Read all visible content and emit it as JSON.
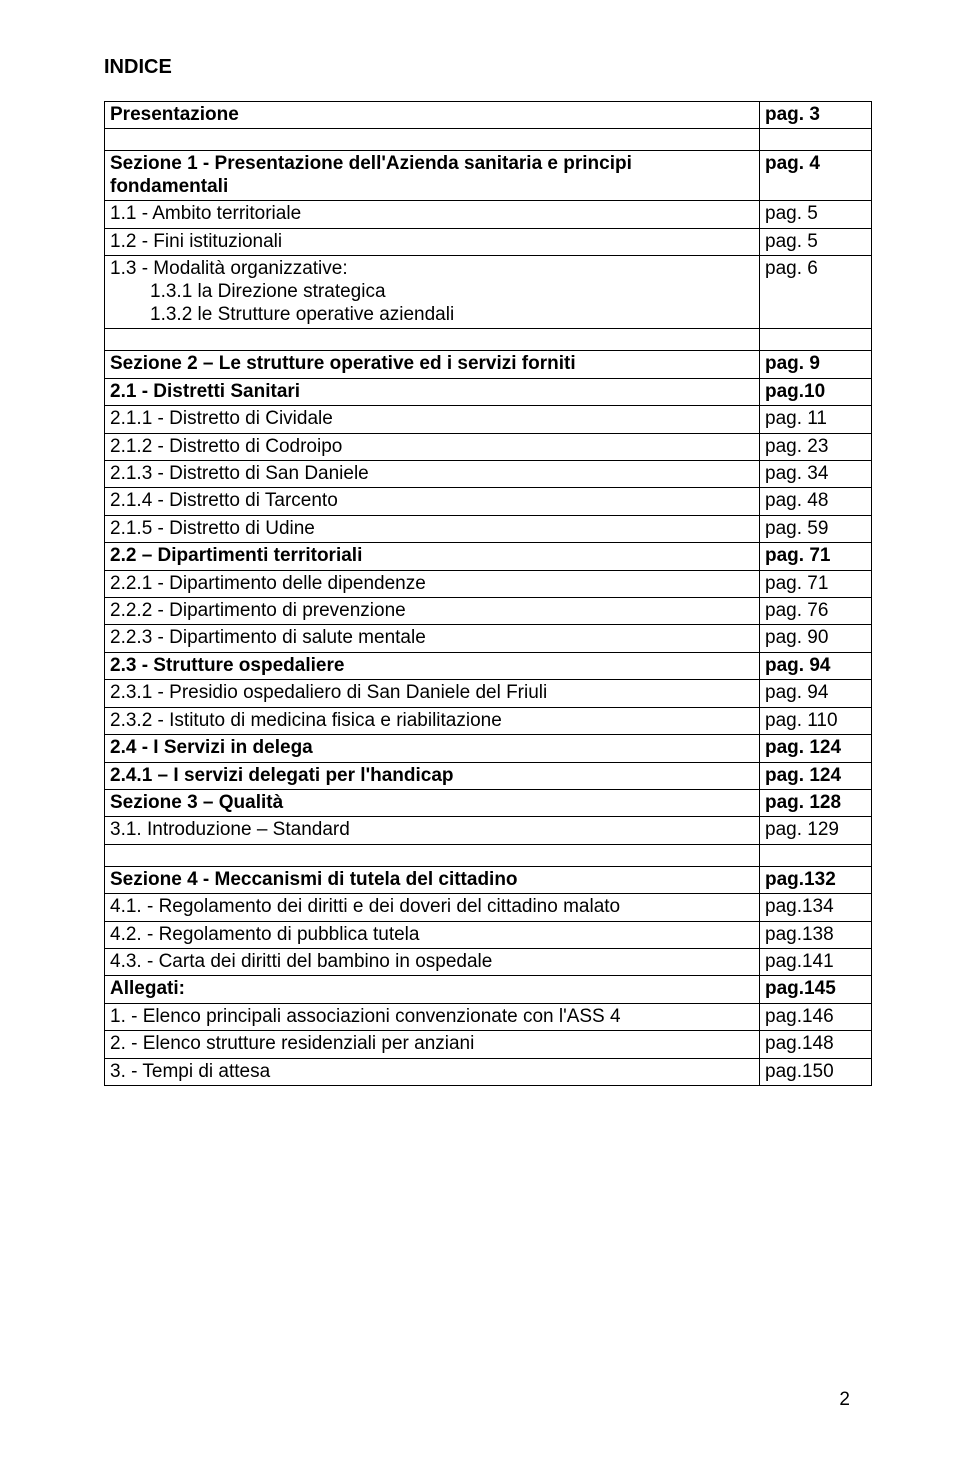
{
  "meta": {
    "pageNumber": "2",
    "title": "INDICE"
  },
  "colors": {
    "background": "#ffffff",
    "text": "#000000",
    "border": "#000000"
  },
  "typography": {
    "baseFontSize": 19,
    "titleFontSize": 20,
    "family": "Arial"
  },
  "layout": {
    "pageWidth": 960,
    "pageHeight": 1457,
    "pageColWidth": 112
  },
  "rows": [
    {
      "label": "Presentazione",
      "page": "pag. 3",
      "bold": true
    },
    {
      "gap": true
    },
    {
      "label": "Sezione 1 - Presentazione dell'Azienda sanitaria e principi fondamentali",
      "page": "pag. 4",
      "bold": true
    },
    {
      "label": "1.1 - Ambito territoriale",
      "page": "pag. 5",
      "bold": false
    },
    {
      "label": "1.2 - Fini istituzionali",
      "page": "pag. 5",
      "bold": false
    },
    {
      "multiline": true,
      "lines": [
        {
          "text": "1.3 - Modalità organizzative:",
          "indent": false
        },
        {
          "text": "1.3.1 la Direzione strategica",
          "indent": true
        },
        {
          "text": "1.3.2 le Strutture operative aziendali",
          "indent": true
        }
      ],
      "page": "pag. 6",
      "bold": false
    },
    {
      "gap": true
    },
    {
      "label": "Sezione 2 – Le strutture operative ed i servizi forniti",
      "page": "pag.  9",
      "bold": true
    },
    {
      "label": "2.1 - Distretti Sanitari",
      "page": "pag.10",
      "bold": true
    },
    {
      "label": "2.1.1 - Distretto di Cividale",
      "page": "pag. 11",
      "bold": false
    },
    {
      "label": "2.1.2 - Distretto di Codroipo",
      "page": "pag. 23",
      "bold": false
    },
    {
      "label": "2.1.3 - Distretto di San Daniele",
      "page": "pag. 34",
      "bold": false
    },
    {
      "label": "2.1.4 - Distretto di Tarcento",
      "page": "pag. 48",
      "bold": false
    },
    {
      "label": "2.1.5 - Distretto di Udine",
      "page": "pag. 59",
      "bold": false
    },
    {
      "label": "2.2 – Dipartimenti territoriali",
      "page": "pag. 71",
      "bold": true
    },
    {
      "label": "2.2.1 - Dipartimento delle dipendenze",
      "page": "pag. 71",
      "bold": false
    },
    {
      "label": "2.2.2 - Dipartimento di prevenzione",
      "page": "pag. 76",
      "bold": false
    },
    {
      "label": "2.2.3 - Dipartimento di salute mentale",
      "page": "pag. 90",
      "bold": false
    },
    {
      "label": "2.3 -  Strutture ospedaliere",
      "page": "pag. 94",
      "bold": true
    },
    {
      "label": "2.3.1 - Presidio ospedaliero di San Daniele del Friuli",
      "page": "pag. 94",
      "bold": false
    },
    {
      "label": "2.3.2 - Istituto di medicina fisica e riabilitazione",
      "page": "pag. 110",
      "bold": false
    },
    {
      "label": "2.4 -  I Servizi in delega",
      "page": "pag. 124",
      "bold": true
    },
    {
      "label": "2.4.1 – I servizi delegati per l'handicap",
      "page": "pag. 124",
      "bold": true
    },
    {
      "label": "Sezione 3 – Qualità",
      "page": "pag. 128",
      "bold": true
    },
    {
      "label": "3.1. Introduzione – Standard",
      "page": "pag. 129",
      "bold": false
    },
    {
      "gap": true
    },
    {
      "label": "Sezione 4 - Meccanismi di tutela del cittadino",
      "page": "pag.132",
      "bold": true
    },
    {
      "label": "4.1. - Regolamento dei diritti e dei doveri del cittadino malato",
      "page": "pag.134",
      "bold": false
    },
    {
      "label": "4.2. - Regolamento di pubblica tutela",
      "page": "pag.138",
      "bold": false
    },
    {
      "label": "4.3. - Carta dei diritti del bambino in ospedale",
      "page": "pag.141",
      "bold": false
    },
    {
      "label": "Allegati:",
      "page": "pag.145",
      "bold": true
    },
    {
      "label": "1. - Elenco principali associazioni convenzionate con l'ASS 4",
      "page": "pag.146",
      "bold": false
    },
    {
      "label": "2. - Elenco strutture residenziali per anziani",
      "page": "pag.148",
      "bold": false
    },
    {
      "label": "3. - Tempi di attesa",
      "page": "pag.150",
      "bold": false
    }
  ]
}
